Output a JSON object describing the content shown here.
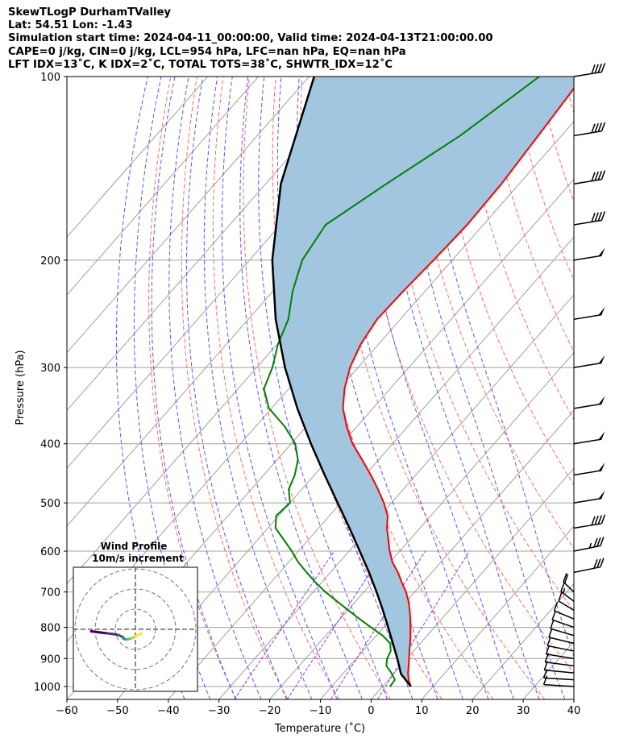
{
  "header": {
    "line1": "SkewTLogP DurhamTValley",
    "line2": "Lat: 54.51   Lon: -1.43",
    "line3": "Simulation start time: 2024-04-11_00:00:00, Valid time: 2024-04-13T21:00:00.00",
    "line4": "CAPE=0 j/kg, CIN=0 j/kg, LCL=954 hPa, LFC=nan hPa, EQ=nan hPa",
    "line5": "LFT IDX=13˚C, K IDX=2˚C, TOTAL TOTS=38˚C, SHWTR_IDX=12˚C"
  },
  "colors": {
    "temperature": "#ff0000",
    "dewpoint": "#008000",
    "parcel": "#000000",
    "cape_shade": "#a2c6df",
    "dry_adiabat": "#ff6666",
    "moist_adiabat": "#5555ff",
    "mixing_ratio": "#9933cc",
    "isotherm": "#a0a0a0"
  },
  "chart_data": {
    "type": "skewt",
    "xlabel": "Temperature (˚C)",
    "ylabel": "Pressure (hPa)",
    "xlim": [
      -60,
      40
    ],
    "ylim": [
      1050,
      100
    ],
    "x_ticks": [
      -60,
      -50,
      -40,
      -30,
      -20,
      -10,
      0,
      10,
      20,
      30,
      40
    ],
    "y_ticks": [
      1000,
      900,
      800,
      700,
      600,
      500,
      400,
      300,
      200,
      100
    ],
    "grid": true,
    "temperature": {
      "pressure": [
        1000,
        975,
        950,
        925,
        900,
        875,
        850,
        825,
        800,
        775,
        750,
        725,
        700,
        675,
        650,
        625,
        600,
        575,
        550,
        525,
        500,
        475,
        450,
        425,
        400,
        375,
        350,
        325,
        300,
        275,
        250,
        225,
        200,
        175,
        150,
        125,
        100
      ],
      "values": [
        5.6,
        4.0,
        2.7,
        1.6,
        0.4,
        -0.8,
        -2.0,
        -3.3,
        -4.7,
        -6.2,
        -7.8,
        -9.6,
        -11.7,
        -14.2,
        -16.7,
        -19.6,
        -22.0,
        -24.2,
        -26.5,
        -28.5,
        -31.5,
        -35.0,
        -38.9,
        -43.2,
        -47.9,
        -52.0,
        -55.9,
        -59.0,
        -61.6,
        -63.5,
        -64.6,
        -64.3,
        -63.7,
        -63.2,
        -63.5,
        -64.6,
        -66.0
      ]
    },
    "dewpoint": {
      "pressure": [
        1000,
        975,
        950,
        925,
        900,
        875,
        850,
        825,
        800,
        775,
        750,
        725,
        700,
        675,
        650,
        625,
        600,
        575,
        550,
        525,
        500,
        475,
        450,
        425,
        400,
        375,
        350,
        325,
        300,
        275,
        250,
        225,
        200,
        175,
        150,
        125,
        100
      ],
      "values": [
        1.5,
        1.3,
        -0.6,
        -2.8,
        -3.9,
        -4.5,
        -5.9,
        -8.8,
        -12.5,
        -16.2,
        -19.9,
        -23.7,
        -27.6,
        -31.2,
        -34.7,
        -38.2,
        -41.3,
        -44.8,
        -48.5,
        -50.5,
        -50.0,
        -52.6,
        -53.9,
        -55.9,
        -59.2,
        -64.2,
        -70.5,
        -74.9,
        -76.9,
        -79.8,
        -82.1,
        -86.1,
        -89.6,
        -91.1,
        -86.2,
        -80.0,
        -74.6
      ]
    },
    "parcel": {
      "pressure": [
        1000,
        975,
        954,
        925,
        900,
        850,
        800,
        750,
        700,
        650,
        600,
        550,
        500,
        450,
        400,
        350,
        300,
        250,
        200,
        150,
        100
      ],
      "values": [
        5.6,
        3.4,
        1.5,
        -0.3,
        -1.9,
        -5.4,
        -9.1,
        -13.1,
        -17.5,
        -22.4,
        -27.9,
        -33.9,
        -40.6,
        -48.0,
        -56.1,
        -64.9,
        -74.4,
        -84.6,
        -95.5,
        -107.0,
        -119.0
      ]
    },
    "wind_barbs": {
      "pressure": [
        1000,
        975,
        950,
        925,
        900,
        875,
        850,
        825,
        800,
        775,
        750,
        725,
        700,
        650,
        600,
        550,
        500,
        450,
        400,
        350,
        300,
        250,
        200,
        175,
        150,
        125,
        100
      ],
      "speed_kt": [
        10,
        10,
        10,
        10,
        10,
        10,
        10,
        10,
        10,
        10,
        10,
        15,
        20,
        30,
        35,
        40,
        50,
        50,
        50,
        50,
        50,
        50,
        50,
        40,
        40,
        40,
        40
      ],
      "direction_deg": [
        100,
        100,
        105,
        110,
        115,
        120,
        125,
        130,
        135,
        140,
        150,
        155,
        160,
        240,
        240,
        245,
        245,
        245,
        245,
        245,
        245,
        245,
        245,
        245,
        245,
        245,
        245
      ]
    },
    "hodograph": {
      "title": "Wind Profile",
      "subtitle": "10m/s increment",
      "u": [
        -22,
        -18,
        -14,
        -10,
        -8,
        -7,
        -6,
        -6,
        -5,
        -4,
        -2,
        0,
        2,
        3
      ],
      "v": [
        -2,
        -3,
        -4,
        -5,
        -6,
        -7,
        -8,
        -9,
        -10,
        -10,
        -9,
        -7,
        -5,
        -4
      ]
    }
  }
}
